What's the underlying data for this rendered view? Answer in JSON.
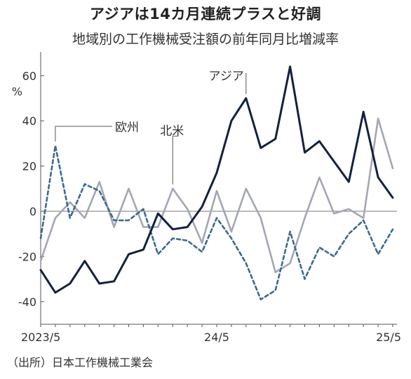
{
  "title": "アジアは14カ月連続プラスと好調",
  "subtitle": "地域別の工作機械受注額の前年同月比増減率",
  "source": "（出所）日本工作機械工業会",
  "chart_data": {
    "type": "line",
    "ylabel": "%",
    "ylim": [
      -50,
      68
    ],
    "yticks": [
      60,
      40,
      20,
      0,
      -20,
      -40
    ],
    "ytick_labels": [
      "60",
      "40",
      "20",
      "0",
      "-20",
      "-40"
    ],
    "x": [
      "2023/5",
      "2023/6",
      "2023/7",
      "2023/8",
      "2023/9",
      "2023/10",
      "2023/11",
      "2023/12",
      "2024/1",
      "2024/2",
      "2024/3",
      "2024/4",
      "2024/5",
      "2024/6",
      "2024/7",
      "2024/8",
      "2024/9",
      "2024/10",
      "2024/11",
      "2024/12",
      "2025/1",
      "2025/2",
      "2025/3",
      "2025/4",
      "2025/5"
    ],
    "xtick_labels": [
      {
        "index": 0,
        "label": "2023/5"
      },
      {
        "index": 12,
        "label": "24/5"
      },
      {
        "index": 24,
        "label": "25/5"
      }
    ],
    "series": [
      {
        "name": "アジア",
        "color": "#14213d",
        "style": "solid",
        "values": [
          -26,
          -36,
          -32,
          -22,
          -32,
          -31,
          -19,
          -17,
          -1,
          -8,
          -7,
          2,
          17,
          40,
          50,
          28,
          32,
          64,
          26,
          31,
          22,
          13,
          44,
          15,
          6
        ]
      },
      {
        "name": "欧州",
        "color": "#3c6b8e",
        "style": "dashed",
        "values": [
          -12,
          29,
          -3,
          12,
          9,
          -4,
          -4,
          1,
          -19,
          -12,
          -13,
          -18,
          -3,
          -12,
          -23,
          -39,
          -35,
          -9,
          -30,
          -16,
          -20,
          -10,
          -4,
          -19,
          -8
        ]
      },
      {
        "name": "北米",
        "color": "#a3a7b5",
        "style": "solid",
        "values": [
          -22,
          -3,
          4,
          -3,
          13,
          -7,
          10,
          -7,
          -7,
          10,
          1,
          -14,
          9,
          -9,
          10,
          -3,
          -27,
          -23,
          -3,
          15,
          -1,
          1,
          -3,
          41,
          19
        ]
      }
    ],
    "annotations": [
      {
        "series": "アジア",
        "label": "アジア"
      },
      {
        "series": "欧州",
        "label": "欧州"
      },
      {
        "series": "北米",
        "label": "北米"
      }
    ]
  }
}
